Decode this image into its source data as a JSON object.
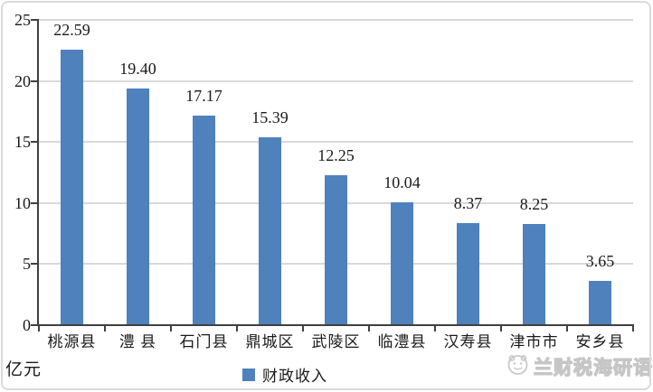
{
  "chart_data": {
    "type": "bar",
    "title": "",
    "categories": [
      "桃源县",
      "澧 县",
      "石门县",
      "鼎城区",
      "武陵区",
      "临澧县",
      "汉寿县",
      "津市市",
      "安乡县"
    ],
    "values": [
      22.59,
      19.4,
      17.17,
      15.39,
      12.25,
      10.04,
      8.37,
      8.25,
      3.65
    ],
    "value_labels": [
      "22.59",
      "19.40",
      "17.17",
      "15.39",
      "12.25",
      "10.04",
      "8.37",
      "8.25",
      "3.65"
    ],
    "series": [
      {
        "name": "财政收入",
        "values": [
          22.59,
          19.4,
          17.17,
          15.39,
          12.25,
          10.04,
          8.37,
          8.25,
          3.65
        ]
      }
    ],
    "xlabel": "",
    "ylabel": "亿元",
    "ylim": [
      0,
      25
    ],
    "yticks": [
      0,
      5,
      10,
      15,
      20,
      25
    ],
    "grid": true,
    "legend_position": "bottom",
    "colors": {
      "bar": "#4F81BD",
      "axis": "#404040",
      "gridline": "#D9D9D9",
      "text": "#1A1A1A",
      "watermark": "#C6C6C6"
    }
  },
  "legend": {
    "label": "财政收入"
  },
  "unit": {
    "label": "亿元"
  },
  "watermark": {
    "text": "兰财税海研语",
    "icon": "cartoon-face-icon"
  }
}
